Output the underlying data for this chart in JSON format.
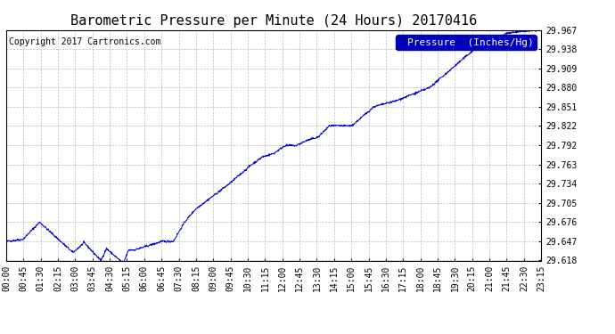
{
  "title": "Barometric Pressure per Minute (24 Hours) 20170416",
  "copyright_text": "Copyright 2017 Cartronics.com",
  "legend_label": "Pressure  (Inches/Hg)",
  "line_color": "#0000CC",
  "background_color": "#ffffff",
  "grid_color": "#aaaaaa",
  "ylim": [
    29.618,
    29.967
  ],
  "yticks": [
    29.618,
    29.647,
    29.676,
    29.705,
    29.734,
    29.763,
    29.792,
    29.822,
    29.851,
    29.88,
    29.909,
    29.938,
    29.967
  ],
  "xtick_labels": [
    "00:00",
    "00:45",
    "01:30",
    "02:15",
    "03:00",
    "03:45",
    "04:30",
    "05:15",
    "06:00",
    "06:45",
    "07:30",
    "08:15",
    "09:00",
    "09:45",
    "10:30",
    "11:15",
    "12:00",
    "12:45",
    "13:30",
    "14:15",
    "15:00",
    "15:45",
    "16:30",
    "17:15",
    "18:00",
    "18:45",
    "19:30",
    "20:15",
    "21:00",
    "21:45",
    "22:30",
    "23:15"
  ],
  "title_fontsize": 11,
  "tick_fontsize": 7,
  "legend_fontsize": 8,
  "copyright_fontsize": 7
}
